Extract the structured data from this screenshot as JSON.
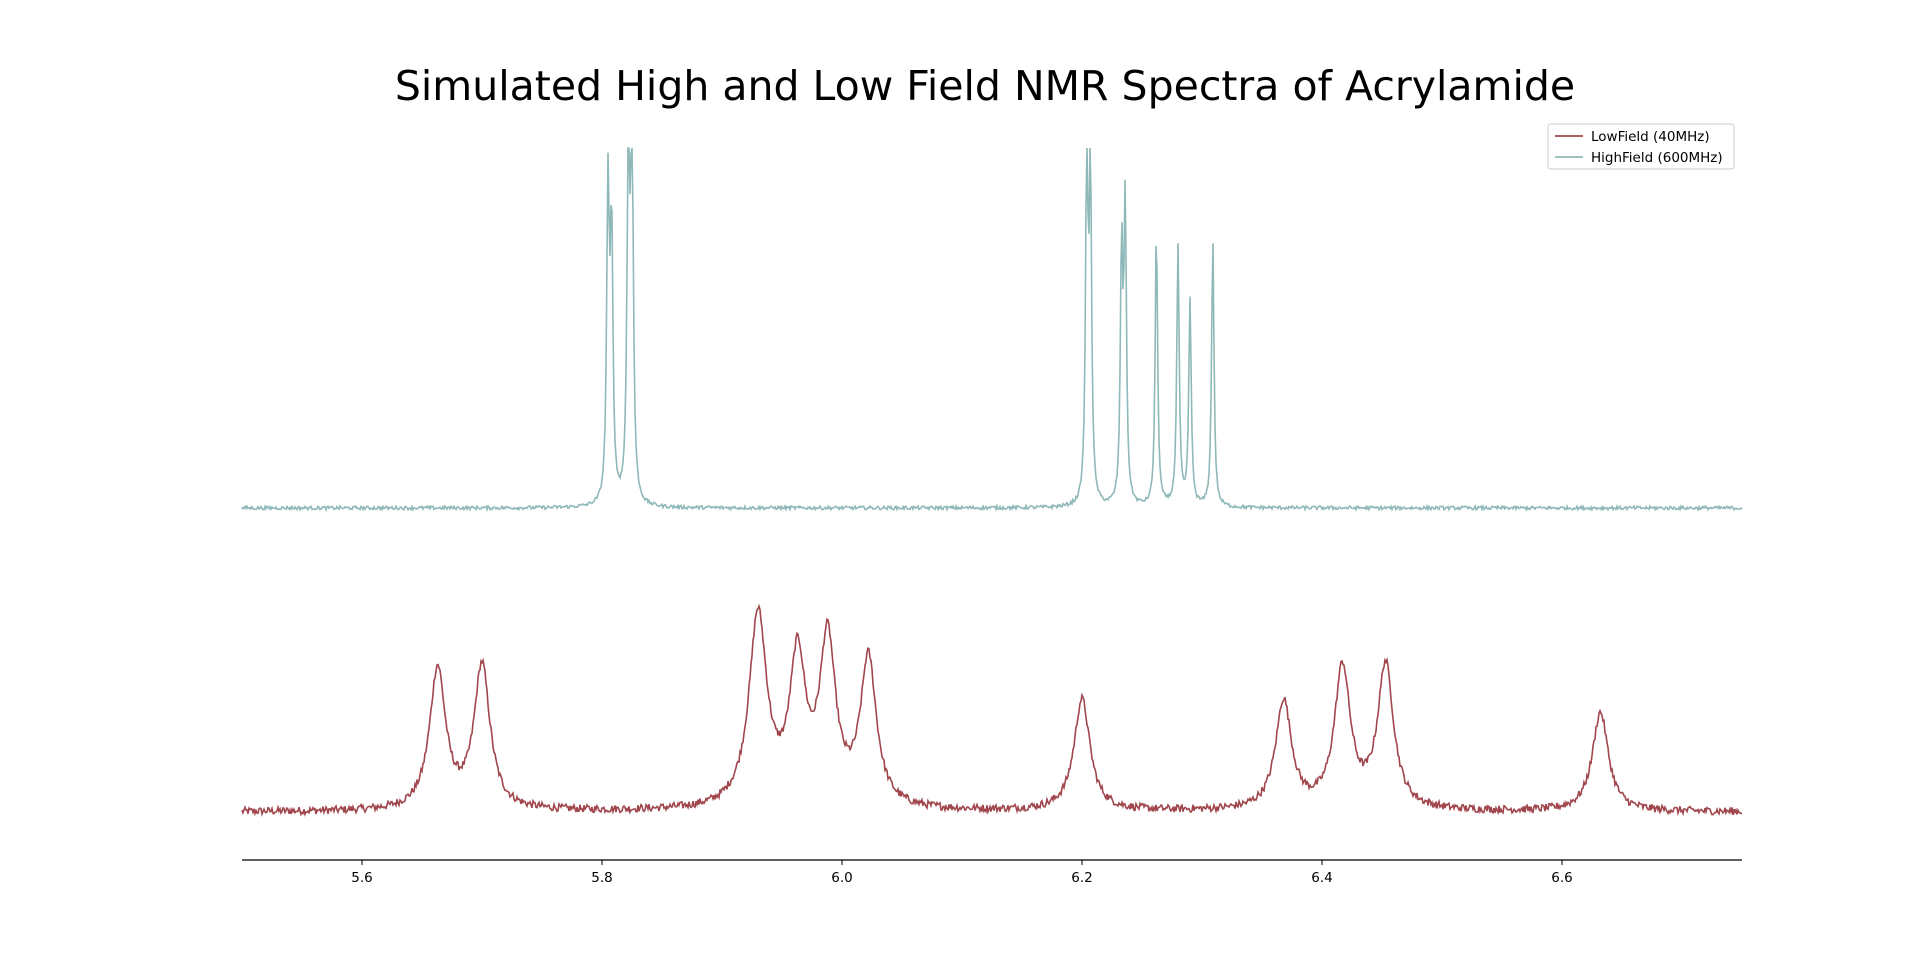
{
  "chart_data": {
    "type": "line",
    "title": "Simulated High and Low Field NMR Spectra of Acrylamide",
    "xlabel": "",
    "ylabel": "",
    "xlim": [
      5.5,
      6.75
    ],
    "xticks": [
      5.6,
      5.8,
      6.0,
      6.2,
      6.4,
      6.6
    ],
    "x_tick_labels": [
      "5.6",
      "5.8",
      "6.0",
      "6.2",
      "6.4",
      "6.6"
    ],
    "grid": false,
    "legend_position": "top-right",
    "series": [
      {
        "name": "LowField (40MHz)",
        "color": "#a0464c",
        "baseline": 0.0,
        "noise": 0.012,
        "peaks": [
          {
            "x": 5.663,
            "h": 0.44,
            "w": 0.008
          },
          {
            "x": 5.7,
            "h": 0.45,
            "w": 0.008
          },
          {
            "x": 5.93,
            "h": 0.6,
            "w": 0.009
          },
          {
            "x": 5.963,
            "h": 0.45,
            "w": 0.008
          },
          {
            "x": 5.988,
            "h": 0.51,
            "w": 0.008
          },
          {
            "x": 6.022,
            "h": 0.46,
            "w": 0.008
          },
          {
            "x": 6.2,
            "h": 0.35,
            "w": 0.008
          },
          {
            "x": 6.368,
            "h": 0.34,
            "w": 0.008
          },
          {
            "x": 6.417,
            "h": 0.44,
            "w": 0.008
          },
          {
            "x": 6.453,
            "h": 0.45,
            "w": 0.008
          },
          {
            "x": 6.632,
            "h": 0.31,
            "w": 0.008
          }
        ]
      },
      {
        "name": "HighField (600MHz)",
        "color": "#8fb8b8",
        "baseline": 1.0,
        "noise": 0.006,
        "peaks": [
          {
            "x": 5.805,
            "h": 1.05,
            "w": 0.0013
          },
          {
            "x": 5.808,
            "h": 0.9,
            "w": 0.0013
          },
          {
            "x": 5.822,
            "h": 1.22,
            "w": 0.0013
          },
          {
            "x": 5.825,
            "h": 1.22,
            "w": 0.0013
          },
          {
            "x": 6.204,
            "h": 1.19,
            "w": 0.0012
          },
          {
            "x": 6.207,
            "h": 1.1,
            "w": 0.0012
          },
          {
            "x": 6.233,
            "h": 0.85,
            "w": 0.0012
          },
          {
            "x": 6.236,
            "h": 1.0,
            "w": 0.0012
          },
          {
            "x": 6.262,
            "h": 0.94,
            "w": 0.0012
          },
          {
            "x": 6.28,
            "h": 0.88,
            "w": 0.0012
          },
          {
            "x": 6.29,
            "h": 0.7,
            "w": 0.0012
          },
          {
            "x": 6.309,
            "h": 0.91,
            "w": 0.0012
          }
        ]
      }
    ]
  }
}
